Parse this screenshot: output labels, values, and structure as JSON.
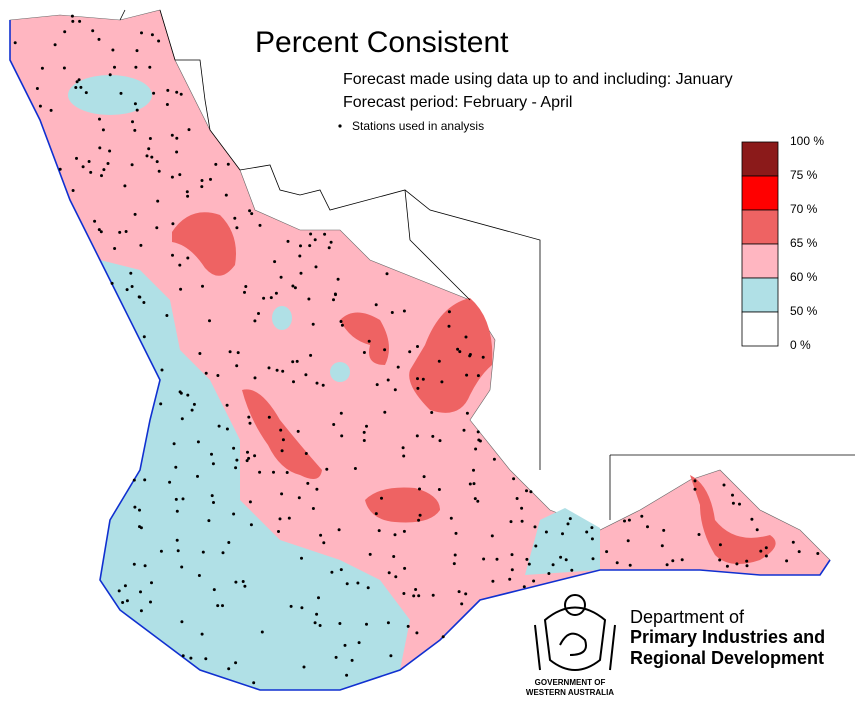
{
  "header": {
    "title": "Percent Consistent",
    "lines": [
      "Forecast made using data up to and including: January",
      "Forecast period: February - April"
    ],
    "stations_note": "Stations used in analysis"
  },
  "legend": {
    "ticks": [
      {
        "value": 100,
        "label": "100 %"
      },
      {
        "value": 75,
        "label": "75 %"
      },
      {
        "value": 70,
        "label": "70 %"
      },
      {
        "value": 65,
        "label": "65 %"
      },
      {
        "value": 60,
        "label": "60 %"
      },
      {
        "value": 50,
        "label": "50 %"
      },
      {
        "value": 0,
        "label": "0 %"
      }
    ],
    "colors": [
      "#8b1a1a",
      "#ff0000",
      "#ee6363",
      "#ffb6c1",
      "#b0e0e6",
      "#ffffff"
    ]
  },
  "footer": {
    "department": [
      "Department of",
      "Primary Industries and",
      "Regional Development"
    ],
    "government": [
      "GOVERNMENT OF",
      "WESTERN AUSTRALIA"
    ]
  }
}
